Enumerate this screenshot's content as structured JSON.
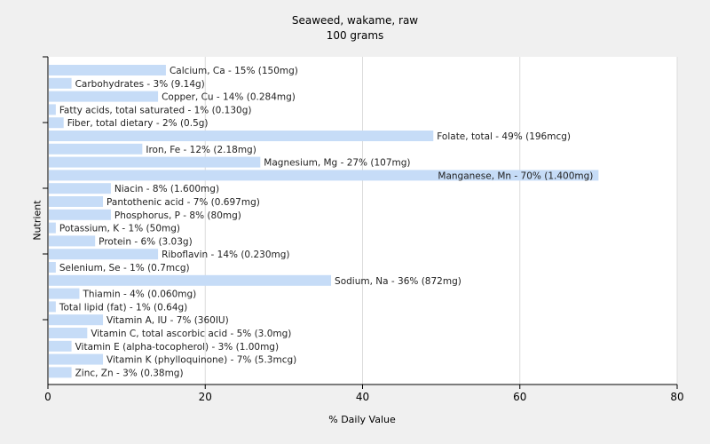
{
  "chart_data": {
    "type": "bar",
    "orientation": "horizontal",
    "title": "Seaweed, wakame, raw",
    "subtitle": "100 grams",
    "xlabel": "% Daily Value",
    "ylabel": "Nutrient",
    "xlim": [
      0,
      80
    ],
    "xticks": [
      "0",
      "20",
      "40",
      "60",
      "80"
    ],
    "grid": "vertical",
    "bar_color": "#c6dcf7",
    "categories": [
      "Calcium, Ca",
      "Carbohydrates",
      "Copper, Cu",
      "Fatty acids, total saturated",
      "Fiber, total dietary",
      "Folate, total",
      "Iron, Fe",
      "Magnesium, Mg",
      "Manganese, Mn",
      "Niacin",
      "Pantothenic acid",
      "Phosphorus, P",
      "Potassium, K",
      "Protein",
      "Riboflavin",
      "Selenium, Se",
      "Sodium, Na",
      "Thiamin",
      "Total lipid (fat)",
      "Vitamin A, IU",
      "Vitamin C, total ascorbic acid",
      "Vitamin E (alpha-tocopherol)",
      "Vitamin K (phylloquinone)",
      "Zinc, Zn"
    ],
    "values": [
      15,
      3,
      14,
      1,
      2,
      49,
      12,
      27,
      70,
      8,
      7,
      8,
      1,
      6,
      14,
      1,
      36,
      4,
      1,
      7,
      5,
      3,
      7,
      3
    ],
    "labels": [
      "Calcium, Ca - 15% (150mg)",
      "Carbohydrates - 3% (9.14g)",
      "Copper, Cu - 14% (0.284mg)",
      "Fatty acids, total saturated - 1% (0.130g)",
      "Fiber, total dietary - 2% (0.5g)",
      "Folate, total - 49% (196mcg)",
      "Iron, Fe - 12% (2.18mg)",
      "Magnesium, Mg - 27% (107mg)",
      "Manganese, Mn - 70% (1.400mg)",
      "Niacin - 8% (1.600mg)",
      "Pantothenic acid - 7% (0.697mg)",
      "Phosphorus, P - 8% (80mg)",
      "Potassium, K - 1% (50mg)",
      "Protein - 6% (3.03g)",
      "Riboflavin - 14% (0.230mg)",
      "Selenium, Se - 1% (0.7mcg)",
      "Sodium, Na - 36% (872mg)",
      "Thiamin - 4% (0.060mg)",
      "Total lipid (fat) - 1% (0.64g)",
      "Vitamin A, IU - 7% (360IU)",
      "Vitamin C, total ascorbic acid - 5% (3.0mg)",
      "Vitamin E (alpha-tocopherol) - 3% (1.00mg)",
      "Vitamin K (phylloquinone) - 7% (5.3mcg)",
      "Zinc, Zn - 3% (0.38mg)"
    ]
  }
}
